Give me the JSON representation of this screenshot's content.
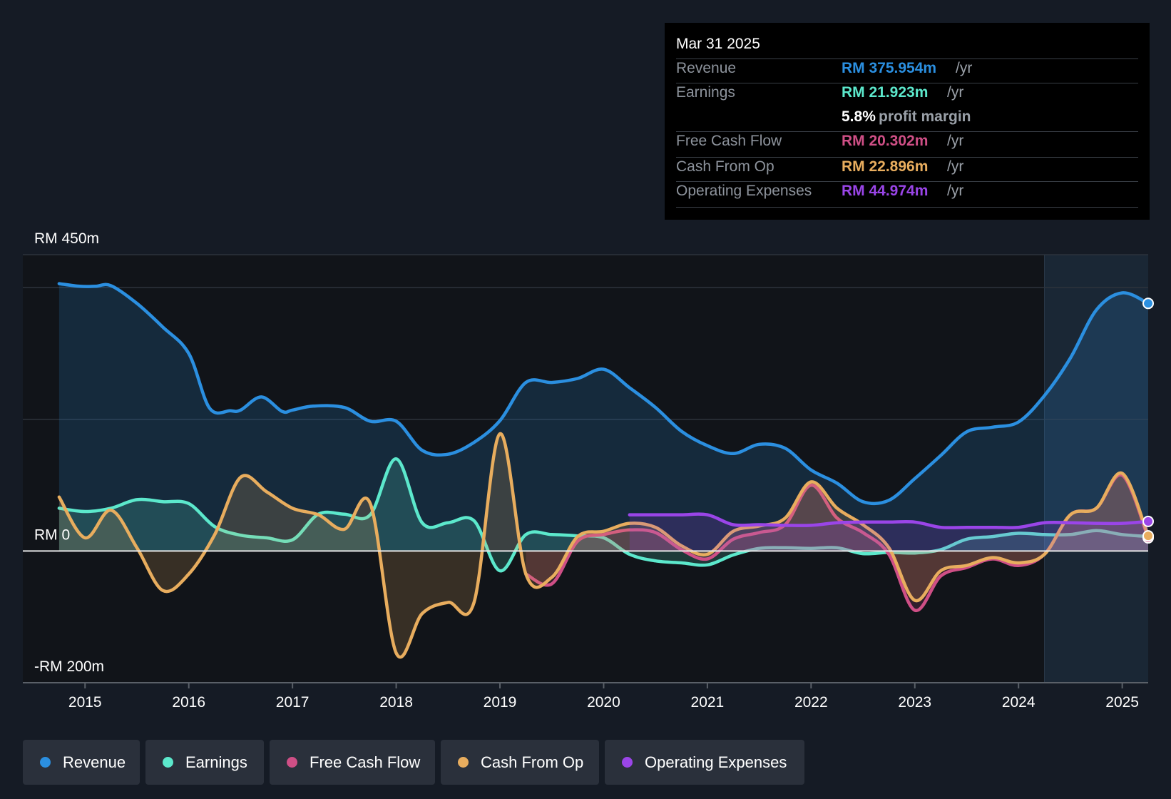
{
  "chart_data": {
    "type": "area",
    "title": "",
    "y_axis": {
      "top_label": "RM 450m",
      "zero_label": "RM 0",
      "bottom_label": "-RM 200m",
      "ylim": [
        -200,
        450
      ],
      "unit": "RM m"
    },
    "x_axis": {
      "ticks": [
        "2015",
        "2016",
        "2017",
        "2018",
        "2019",
        "2020",
        "2021",
        "2022",
        "2023",
        "2024",
        "2025"
      ],
      "xlim": [
        2014.4,
        2025.25
      ]
    },
    "forecast_from": 2024.25,
    "series": [
      {
        "name": "Revenue",
        "color": "#2b8fe0",
        "fill": true,
        "points": [
          [
            2014.75,
            406
          ],
          [
            2014.95,
            402
          ],
          [
            2015.1,
            402
          ],
          [
            2015.25,
            403
          ],
          [
            2015.5,
            376
          ],
          [
            2015.75,
            340
          ],
          [
            2016.0,
            300
          ],
          [
            2016.2,
            217
          ],
          [
            2016.4,
            213
          ],
          [
            2016.5,
            214
          ],
          [
            2016.7,
            234
          ],
          [
            2016.9,
            212
          ],
          [
            2017.0,
            214
          ],
          [
            2017.2,
            220
          ],
          [
            2017.5,
            218
          ],
          [
            2017.75,
            197
          ],
          [
            2018.0,
            197
          ],
          [
            2018.25,
            153
          ],
          [
            2018.5,
            147
          ],
          [
            2018.75,
            165
          ],
          [
            2019.0,
            198
          ],
          [
            2019.25,
            256
          ],
          [
            2019.5,
            256
          ],
          [
            2019.75,
            262
          ],
          [
            2020.0,
            276
          ],
          [
            2020.25,
            248
          ],
          [
            2020.5,
            218
          ],
          [
            2020.75,
            182
          ],
          [
            2021.0,
            160
          ],
          [
            2021.25,
            148
          ],
          [
            2021.5,
            162
          ],
          [
            2021.75,
            156
          ],
          [
            2022.0,
            123
          ],
          [
            2022.25,
            103
          ],
          [
            2022.5,
            75
          ],
          [
            2022.75,
            77
          ],
          [
            2023.0,
            110
          ],
          [
            2023.25,
            145
          ],
          [
            2023.5,
            181
          ],
          [
            2023.75,
            188
          ],
          [
            2024.0,
            196
          ],
          [
            2024.25,
            236
          ],
          [
            2024.5,
            293
          ],
          [
            2024.75,
            366
          ],
          [
            2025.0,
            392
          ],
          [
            2025.25,
            376
          ]
        ]
      },
      {
        "name": "Earnings",
        "color": "#5ce8cc",
        "fill": true,
        "points": [
          [
            2014.75,
            65
          ],
          [
            2015.0,
            60
          ],
          [
            2015.25,
            65
          ],
          [
            2015.5,
            78
          ],
          [
            2015.75,
            75
          ],
          [
            2016.0,
            72
          ],
          [
            2016.25,
            37
          ],
          [
            2016.5,
            24
          ],
          [
            2016.75,
            20
          ],
          [
            2017.0,
            17
          ],
          [
            2017.25,
            56
          ],
          [
            2017.5,
            56
          ],
          [
            2017.75,
            55
          ],
          [
            2018.0,
            140
          ],
          [
            2018.25,
            43
          ],
          [
            2018.5,
            43
          ],
          [
            2018.75,
            46
          ],
          [
            2019.0,
            -30
          ],
          [
            2019.25,
            25
          ],
          [
            2019.5,
            25
          ],
          [
            2019.75,
            23
          ],
          [
            2020.0,
            20
          ],
          [
            2020.25,
            -5
          ],
          [
            2020.5,
            -15
          ],
          [
            2020.75,
            -18
          ],
          [
            2021.0,
            -21
          ],
          [
            2021.25,
            -6
          ],
          [
            2021.5,
            4
          ],
          [
            2021.75,
            5
          ],
          [
            2022.0,
            4
          ],
          [
            2022.25,
            5
          ],
          [
            2022.5,
            -4
          ],
          [
            2022.75,
            -2
          ],
          [
            2023.0,
            -3
          ],
          [
            2023.25,
            2
          ],
          [
            2023.5,
            18
          ],
          [
            2023.75,
            22
          ],
          [
            2024.0,
            27
          ],
          [
            2024.25,
            25
          ],
          [
            2024.5,
            25
          ],
          [
            2024.75,
            31
          ],
          [
            2025.0,
            25
          ],
          [
            2025.25,
            22
          ]
        ]
      },
      {
        "name": "Free Cash Flow",
        "color": "#cf4f86",
        "fill": true,
        "points": [
          [
            2019.25,
            -35
          ],
          [
            2019.5,
            -50
          ],
          [
            2019.75,
            15
          ],
          [
            2020.0,
            25
          ],
          [
            2020.25,
            32
          ],
          [
            2020.5,
            28
          ],
          [
            2020.75,
            2
          ],
          [
            2021.0,
            -12
          ],
          [
            2021.25,
            18
          ],
          [
            2021.5,
            28
          ],
          [
            2021.75,
            40
          ],
          [
            2022.0,
            100
          ],
          [
            2022.25,
            50
          ],
          [
            2022.5,
            28
          ],
          [
            2022.75,
            -5
          ],
          [
            2023.0,
            -90
          ],
          [
            2023.25,
            -38
          ],
          [
            2023.5,
            -25
          ],
          [
            2023.75,
            -12
          ],
          [
            2024.0,
            -22
          ],
          [
            2024.25,
            -5
          ],
          [
            2024.5,
            55
          ],
          [
            2024.75,
            65
          ],
          [
            2025.0,
            115
          ],
          [
            2025.25,
            20
          ]
        ]
      },
      {
        "name": "Cash From Op",
        "color": "#e8ad5e",
        "fill": true,
        "points": [
          [
            2014.75,
            82
          ],
          [
            2015.0,
            20
          ],
          [
            2015.25,
            62
          ],
          [
            2015.5,
            5
          ],
          [
            2015.75,
            -60
          ],
          [
            2016.0,
            -35
          ],
          [
            2016.25,
            25
          ],
          [
            2016.5,
            112
          ],
          [
            2016.75,
            90
          ],
          [
            2017.0,
            65
          ],
          [
            2017.25,
            55
          ],
          [
            2017.5,
            33
          ],
          [
            2017.75,
            72
          ],
          [
            2018.0,
            -155
          ],
          [
            2018.25,
            -95
          ],
          [
            2018.5,
            -78
          ],
          [
            2018.75,
            -78
          ],
          [
            2019.0,
            178
          ],
          [
            2019.25,
            -35
          ],
          [
            2019.5,
            -40
          ],
          [
            2019.75,
            22
          ],
          [
            2020.0,
            30
          ],
          [
            2020.25,
            42
          ],
          [
            2020.5,
            36
          ],
          [
            2020.75,
            8
          ],
          [
            2021.0,
            -5
          ],
          [
            2021.25,
            30
          ],
          [
            2021.5,
            38
          ],
          [
            2021.75,
            50
          ],
          [
            2022.0,
            105
          ],
          [
            2022.25,
            65
          ],
          [
            2022.5,
            40
          ],
          [
            2022.75,
            5
          ],
          [
            2023.0,
            -75
          ],
          [
            2023.25,
            -30
          ],
          [
            2023.5,
            -22
          ],
          [
            2023.75,
            -10
          ],
          [
            2024.0,
            -18
          ],
          [
            2024.25,
            -5
          ],
          [
            2024.5,
            55
          ],
          [
            2024.75,
            65
          ],
          [
            2025.0,
            118
          ],
          [
            2025.25,
            23
          ]
        ]
      },
      {
        "name": "Operating Expenses",
        "color": "#9a45e8",
        "fill": true,
        "points": [
          [
            2020.25,
            55
          ],
          [
            2020.5,
            55
          ],
          [
            2020.75,
            55
          ],
          [
            2021.0,
            55
          ],
          [
            2021.25,
            40
          ],
          [
            2021.5,
            40
          ],
          [
            2021.75,
            39
          ],
          [
            2022.0,
            39
          ],
          [
            2022.25,
            43
          ],
          [
            2022.5,
            44
          ],
          [
            2022.75,
            44
          ],
          [
            2023.0,
            44
          ],
          [
            2023.25,
            36
          ],
          [
            2023.5,
            36
          ],
          [
            2023.75,
            36
          ],
          [
            2024.0,
            36
          ],
          [
            2024.25,
            43
          ],
          [
            2024.5,
            43
          ],
          [
            2024.75,
            42
          ],
          [
            2025.0,
            42
          ],
          [
            2025.25,
            45
          ]
        ]
      }
    ]
  },
  "tooltip": {
    "date": "Mar 31 2025",
    "rows": [
      {
        "label": "Revenue",
        "value": "RM 375.954m",
        "unit": "/yr",
        "color": "#2b8fe0"
      },
      {
        "label": "Earnings",
        "value": "RM 21.923m",
        "unit": "/yr",
        "color": "#5ce8cc"
      },
      {
        "label": "",
        "value": "5.8%",
        "unit": "profit margin",
        "color": "#ffffff"
      },
      {
        "label": "Free Cash Flow",
        "value": "RM 20.302m",
        "unit": "/yr",
        "color": "#cf4f86"
      },
      {
        "label": "Cash From Op",
        "value": "RM 22.896m",
        "unit": "/yr",
        "color": "#e8ad5e"
      },
      {
        "label": "Operating Expenses",
        "value": "RM 44.974m",
        "unit": "/yr",
        "color": "#9a45e8"
      }
    ]
  },
  "legend": [
    {
      "label": "Revenue",
      "color": "#2b8fe0"
    },
    {
      "label": "Earnings",
      "color": "#5ce8cc"
    },
    {
      "label": "Free Cash Flow",
      "color": "#cf4f86"
    },
    {
      "label": "Cash From Op",
      "color": "#e8ad5e"
    },
    {
      "label": "Operating Expenses",
      "color": "#9a45e8"
    }
  ]
}
